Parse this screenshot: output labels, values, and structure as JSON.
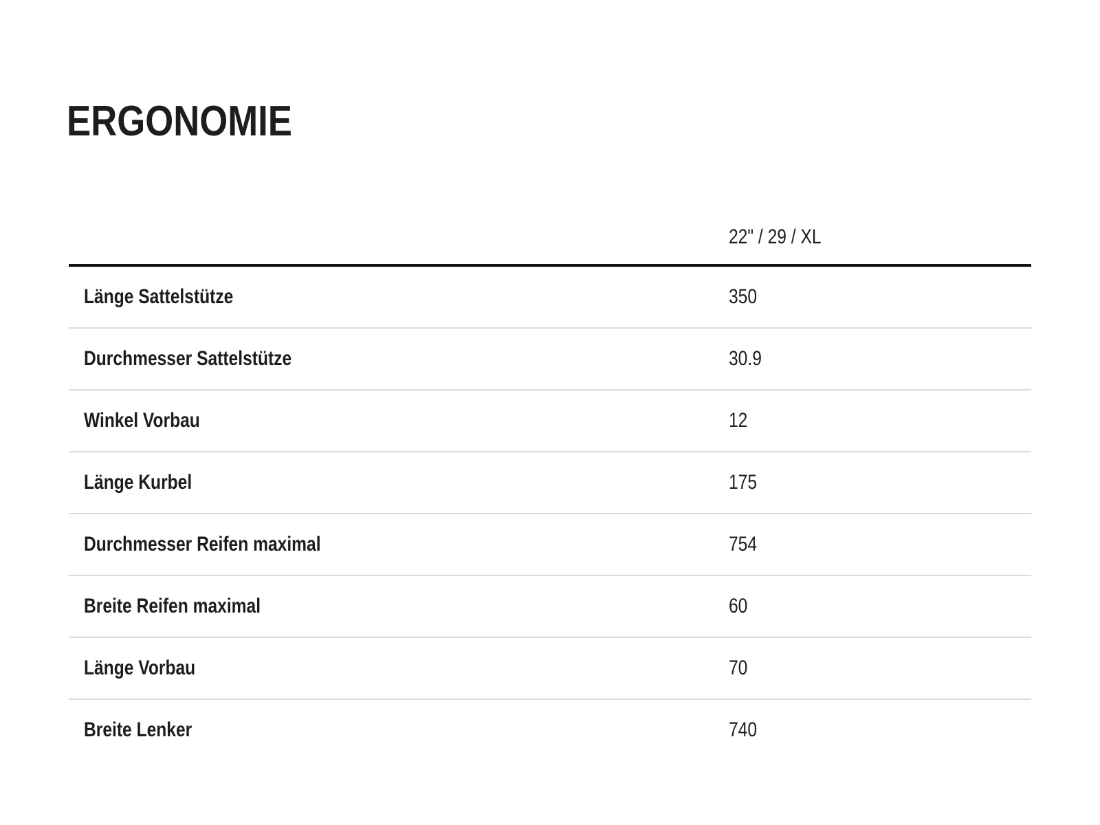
{
  "section": {
    "title": "ERGONOMIE"
  },
  "table": {
    "column_header": "22\" / 29 / XL",
    "rows": [
      {
        "label": "Länge Sattelstütze",
        "value": "350"
      },
      {
        "label": "Durchmesser Sattelstütze",
        "value": "30.9"
      },
      {
        "label": "Winkel Vorbau",
        "value": "12"
      },
      {
        "label": "Länge Kurbel",
        "value": "175"
      },
      {
        "label": "Durchmesser Reifen maximal",
        "value": "754"
      },
      {
        "label": "Breite Reifen maximal",
        "value": "60"
      },
      {
        "label": "Länge Vorbau",
        "value": "70"
      },
      {
        "label": "Breite Lenker",
        "value": "740"
      }
    ]
  },
  "colors": {
    "background": "#ffffff",
    "text": "#1d1d1d",
    "header_rule": "#141414",
    "row_divider": "#d5dbdf"
  }
}
